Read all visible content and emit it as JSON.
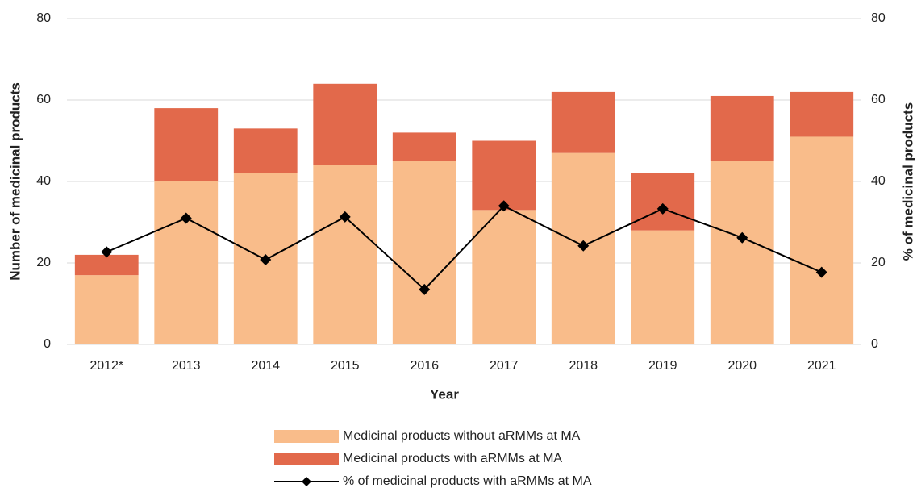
{
  "chart_data": {
    "type": "bar",
    "stacked": true,
    "categories": [
      "2012*",
      "2013",
      "2014",
      "2015",
      "2016",
      "2017",
      "2018",
      "2019",
      "2020",
      "2021"
    ],
    "series": [
      {
        "name": "Medicinal products without aRMMs at MA",
        "color": "#f9bc8a",
        "type": "bar",
        "values": [
          17,
          40,
          42,
          44,
          45,
          33,
          47,
          28,
          45,
          51
        ]
      },
      {
        "name": "Medicinal products with aRMMs at MA",
        "color": "#e2694b",
        "type": "bar",
        "values": [
          5,
          18,
          11,
          20,
          7,
          17,
          15,
          14,
          16,
          11
        ]
      },
      {
        "name": "% of medicinal products with aRMMs at MA",
        "color": "#000000",
        "type": "line",
        "axis": "y2",
        "values": [
          22.7,
          31.0,
          20.8,
          31.3,
          13.5,
          34.0,
          24.2,
          33.3,
          26.2,
          17.7
        ]
      }
    ],
    "x_label": "Year",
    "y_label": "Number of medicinal products",
    "y2_label": "% of medicinal products",
    "ylim": [
      0,
      80
    ],
    "yticks": [
      0,
      20,
      40,
      60,
      80
    ],
    "y2lim": [
      0,
      80
    ],
    "y2ticks": [
      0,
      20,
      40,
      60,
      80
    ],
    "grid": true,
    "legend": "bottom"
  }
}
